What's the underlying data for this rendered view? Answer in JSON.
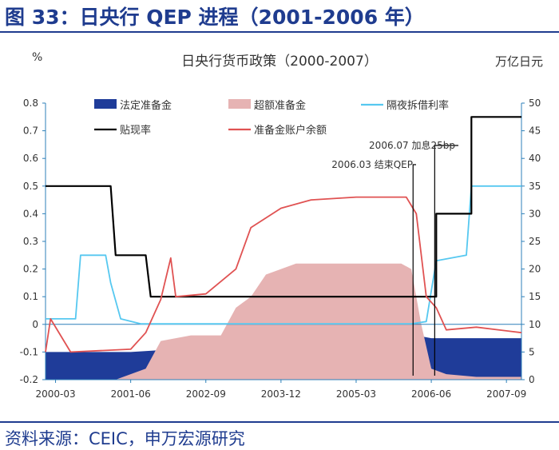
{
  "figure_title": "图 33：日央行 QEP 进程（2001-2006 年）",
  "source": "资料来源：CEIC，申万宏源研究",
  "colors": {
    "title": "#1f3c8f",
    "statutory_reserve": "#1f3c99",
    "excess_reserve_fill": "#e6b3b3",
    "call_rate": "#56c8f0",
    "discount_rate": "#000000",
    "current_account": "#e05252",
    "axis": "#2c7fb8"
  },
  "chart_data": {
    "type": "line",
    "title": "日央行货币政策（2000-2007）",
    "ylabel_left": "%",
    "ylabel_right": "万亿日元",
    "ylim_left": [
      -0.2,
      0.8
    ],
    "ylim_right": [
      0,
      50
    ],
    "yticks_left": [
      "-0.2",
      "-0.1",
      "0",
      "0.1",
      "0.2",
      "0.3",
      "0.4",
      "0.5",
      "0.6",
      "0.7",
      "0.8"
    ],
    "yticks_right": [
      "0",
      "5",
      "10",
      "15",
      "20",
      "25",
      "30",
      "35",
      "40",
      "45",
      "50"
    ],
    "xlim": [
      "2000-01",
      "2007-12"
    ],
    "xticks": [
      "2000-03",
      "2001-06",
      "2002-09",
      "2003-12",
      "2005-03",
      "2006-06",
      "2007-09"
    ],
    "legend_position": "top",
    "series": [
      {
        "name": "法定准备金",
        "type": "area",
        "axis": "right",
        "points": [
          [
            "2000-01",
            5.0
          ],
          [
            "2001-06",
            5.0
          ],
          [
            "2002-03",
            5.5
          ],
          [
            "2002-09",
            6.0
          ],
          [
            "2003-06",
            6.5
          ],
          [
            "2004-06",
            7.0
          ],
          [
            "2005-06",
            7.5
          ],
          [
            "2006-03",
            8.0
          ],
          [
            "2006-06",
            7.5
          ],
          [
            "2007-06",
            7.5
          ],
          [
            "2007-12",
            7.5
          ]
        ]
      },
      {
        "name": "超额准备金",
        "type": "area",
        "axis": "right",
        "points": [
          [
            "2000-01",
            0
          ],
          [
            "2001-03",
            0
          ],
          [
            "2001-09",
            2
          ],
          [
            "2001-12",
            7
          ],
          [
            "2002-06",
            8
          ],
          [
            "2002-09",
            8
          ],
          [
            "2002-12",
            8
          ],
          [
            "2003-03",
            13
          ],
          [
            "2003-06",
            15
          ],
          [
            "2003-09",
            19
          ],
          [
            "2004-03",
            21
          ],
          [
            "2005-03",
            21
          ],
          [
            "2005-12",
            21
          ],
          [
            "2006-02",
            20
          ],
          [
            "2006-04",
            10
          ],
          [
            "2006-06",
            2
          ],
          [
            "2006-09",
            1
          ],
          [
            "2007-03",
            0.5
          ],
          [
            "2007-12",
            0.5
          ]
        ]
      },
      {
        "name": "隔夜拆借利率",
        "type": "line",
        "axis": "left",
        "points": [
          [
            "2000-01",
            0.02
          ],
          [
            "2000-07",
            0.02
          ],
          [
            "2000-08",
            0.25
          ],
          [
            "2001-01",
            0.25
          ],
          [
            "2001-02",
            0.15
          ],
          [
            "2001-04",
            0.02
          ],
          [
            "2001-08",
            0.002
          ],
          [
            "2006-02",
            0.002
          ],
          [
            "2006-05",
            0.01
          ],
          [
            "2006-07",
            0.23
          ],
          [
            "2007-01",
            0.25
          ],
          [
            "2007-02",
            0.5
          ],
          [
            "2007-05",
            0.5
          ],
          [
            "2007-08",
            0.5
          ],
          [
            "2007-12",
            0.5
          ]
        ]
      },
      {
        "name": "贴现率",
        "type": "line",
        "axis": "left",
        "points": [
          [
            "2000-01",
            0.5
          ],
          [
            "2001-02",
            0.5
          ],
          [
            "2001-03",
            0.25
          ],
          [
            "2001-09",
            0.25
          ],
          [
            "2001-10",
            0.1
          ],
          [
            "2006-07",
            0.1
          ],
          [
            "2006-07",
            0.4
          ],
          [
            "2007-02",
            0.4
          ],
          [
            "2007-02",
            0.75
          ],
          [
            "2007-12",
            0.75
          ]
        ]
      },
      {
        "name": "准备金账户余额",
        "type": "line",
        "axis": "right",
        "points": [
          [
            "2000-01",
            5.0
          ],
          [
            "2000-02",
            11.0
          ],
          [
            "2000-06",
            5.0
          ],
          [
            "2001-06",
            5.5
          ],
          [
            "2001-09",
            8.5
          ],
          [
            "2001-12",
            14.5
          ],
          [
            "2002-02",
            22.0
          ],
          [
            "2002-03",
            15.0
          ],
          [
            "2002-09",
            15.5
          ],
          [
            "2003-03",
            20.0
          ],
          [
            "2003-06",
            27.5
          ],
          [
            "2003-12",
            31.0
          ],
          [
            "2004-06",
            32.5
          ],
          [
            "2005-03",
            33.0
          ],
          [
            "2006-01",
            33.0
          ],
          [
            "2006-03",
            30.0
          ],
          [
            "2006-05",
            15.0
          ],
          [
            "2006-07",
            13.0
          ],
          [
            "2006-09",
            9.0
          ],
          [
            "2007-03",
            9.5
          ],
          [
            "2007-12",
            8.5
          ]
        ]
      }
    ],
    "annotations": [
      {
        "text": "2006.07 加息25bp",
        "x": "2006-07"
      },
      {
        "text": "2006.03 结束QEP",
        "x": "2006-03"
      }
    ]
  }
}
